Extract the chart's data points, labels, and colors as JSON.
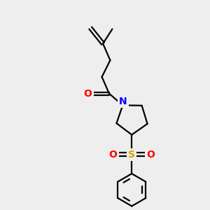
{
  "bg_color": "#eeeeee",
  "atom_colors": {
    "N": "#0000ff",
    "O": "#ff0000",
    "S": "#ccaa00"
  },
  "bond_color": "#000000",
  "bond_width": 1.6,
  "figsize": [
    3.0,
    3.0
  ],
  "dpi": 100
}
